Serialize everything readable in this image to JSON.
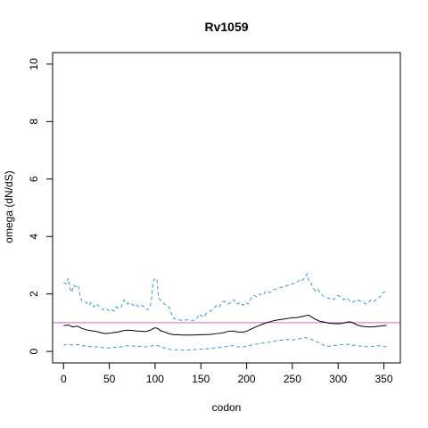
{
  "chart_data": {
    "type": "line",
    "title": "Rv1059",
    "xlabel": "codon",
    "ylabel": "omega (dN/dS)",
    "xlim": [
      -12,
      368
    ],
    "ylim": [
      -0.4,
      10.4
    ],
    "x_ticks": [
      0,
      50,
      100,
      150,
      200,
      250,
      300,
      350
    ],
    "y_ticks": [
      0,
      2,
      4,
      6,
      8,
      10
    ],
    "reference_line": {
      "y": 1,
      "color": "#cc66cc"
    },
    "colors": {
      "estimate": "#000000",
      "interval": "#3399dd"
    },
    "series": [
      {
        "role": "estimate",
        "line_style": "solid",
        "points": [
          [
            0,
            0.9
          ],
          [
            5,
            0.92
          ],
          [
            10,
            0.85
          ],
          [
            15,
            0.88
          ],
          [
            20,
            0.8
          ],
          [
            25,
            0.75
          ],
          [
            30,
            0.72
          ],
          [
            35,
            0.7
          ],
          [
            40,
            0.66
          ],
          [
            45,
            0.62
          ],
          [
            50,
            0.63
          ],
          [
            55,
            0.66
          ],
          [
            60,
            0.68
          ],
          [
            65,
            0.72
          ],
          [
            70,
            0.74
          ],
          [
            75,
            0.73
          ],
          [
            80,
            0.71
          ],
          [
            85,
            0.7
          ],
          [
            90,
            0.69
          ],
          [
            95,
            0.74
          ],
          [
            98,
            0.8
          ],
          [
            100,
            0.82
          ],
          [
            103,
            0.8
          ],
          [
            106,
            0.72
          ],
          [
            110,
            0.68
          ],
          [
            115,
            0.62
          ],
          [
            120,
            0.58
          ],
          [
            125,
            0.58
          ],
          [
            130,
            0.57
          ],
          [
            140,
            0.57
          ],
          [
            150,
            0.58
          ],
          [
            160,
            0.59
          ],
          [
            170,
            0.63
          ],
          [
            175,
            0.65
          ],
          [
            180,
            0.7
          ],
          [
            185,
            0.71
          ],
          [
            190,
            0.68
          ],
          [
            195,
            0.67
          ],
          [
            200,
            0.7
          ],
          [
            205,
            0.78
          ],
          [
            210,
            0.85
          ],
          [
            215,
            0.92
          ],
          [
            220,
            0.98
          ],
          [
            225,
            1.03
          ],
          [
            230,
            1.07
          ],
          [
            235,
            1.1
          ],
          [
            240,
            1.12
          ],
          [
            245,
            1.15
          ],
          [
            250,
            1.17
          ],
          [
            255,
            1.18
          ],
          [
            260,
            1.21
          ],
          [
            265,
            1.25
          ],
          [
            268,
            1.26
          ],
          [
            270,
            1.22
          ],
          [
            275,
            1.12
          ],
          [
            280,
            1.05
          ],
          [
            285,
            1.02
          ],
          [
            290,
            0.98
          ],
          [
            295,
            0.97
          ],
          [
            300,
            0.96
          ],
          [
            305,
            0.98
          ],
          [
            310,
            1.02
          ],
          [
            313,
            1.03
          ],
          [
            316,
            1.0
          ],
          [
            320,
            0.93
          ],
          [
            325,
            0.88
          ],
          [
            330,
            0.86
          ],
          [
            335,
            0.85
          ],
          [
            340,
            0.86
          ],
          [
            345,
            0.88
          ],
          [
            350,
            0.9
          ],
          [
            353,
            0.9
          ]
        ]
      },
      {
        "role": "upper",
        "line_style": "dashed",
        "points": [
          [
            0,
            2.4
          ],
          [
            3,
            2.35
          ],
          [
            5,
            2.55
          ],
          [
            7,
            2.2
          ],
          [
            9,
            2.05
          ],
          [
            11,
            2.3
          ],
          [
            13,
            2.25
          ],
          [
            16,
            2.3
          ],
          [
            18,
            1.9
          ],
          [
            20,
            1.75
          ],
          [
            25,
            1.7
          ],
          [
            28,
            1.6
          ],
          [
            30,
            1.7
          ],
          [
            33,
            1.55
          ],
          [
            36,
            1.65
          ],
          [
            40,
            1.55
          ],
          [
            43,
            1.45
          ],
          [
            46,
            1.5
          ],
          [
            50,
            1.4
          ],
          [
            53,
            1.45
          ],
          [
            55,
            1.4
          ],
          [
            58,
            1.55
          ],
          [
            60,
            1.5
          ],
          [
            63,
            1.55
          ],
          [
            66,
            1.8
          ],
          [
            68,
            1.75
          ],
          [
            70,
            1.65
          ],
          [
            73,
            1.7
          ],
          [
            76,
            1.6
          ],
          [
            79,
            1.65
          ],
          [
            82,
            1.55
          ],
          [
            85,
            1.6
          ],
          [
            88,
            1.55
          ],
          [
            91,
            1.45
          ],
          [
            94,
            1.5
          ],
          [
            96,
            1.8
          ],
          [
            98,
            2.45
          ],
          [
            100,
            2.55
          ],
          [
            102,
            2.5
          ],
          [
            104,
            1.85
          ],
          [
            107,
            1.75
          ],
          [
            110,
            1.65
          ],
          [
            113,
            1.6
          ],
          [
            116,
            1.5
          ],
          [
            118,
            1.3
          ],
          [
            120,
            1.15
          ],
          [
            125,
            1.1
          ],
          [
            130,
            1.08
          ],
          [
            135,
            1.1
          ],
          [
            140,
            1.08
          ],
          [
            145,
            1.1
          ],
          [
            148,
            1.3
          ],
          [
            150,
            1.25
          ],
          [
            153,
            1.2
          ],
          [
            157,
            1.35
          ],
          [
            160,
            1.4
          ],
          [
            163,
            1.45
          ],
          [
            167,
            1.6
          ],
          [
            170,
            1.55
          ],
          [
            173,
            1.7
          ],
          [
            176,
            1.75
          ],
          [
            180,
            1.65
          ],
          [
            183,
            1.7
          ],
          [
            186,
            1.8
          ],
          [
            190,
            1.65
          ],
          [
            193,
            1.7
          ],
          [
            196,
            1.6
          ],
          [
            199,
            1.7
          ],
          [
            202,
            1.65
          ],
          [
            205,
            1.85
          ],
          [
            208,
            1.95
          ],
          [
            211,
            1.9
          ],
          [
            215,
            2.0
          ],
          [
            218,
            1.95
          ],
          [
            221,
            2.1
          ],
          [
            225,
            2.05
          ],
          [
            230,
            2.15
          ],
          [
            235,
            2.2
          ],
          [
            240,
            2.25
          ],
          [
            245,
            2.3
          ],
          [
            250,
            2.35
          ],
          [
            255,
            2.4
          ],
          [
            258,
            2.5
          ],
          [
            260,
            2.45
          ],
          [
            263,
            2.55
          ],
          [
            266,
            2.7
          ],
          [
            268,
            2.45
          ],
          [
            270,
            2.4
          ],
          [
            272,
            2.25
          ],
          [
            275,
            2.1
          ],
          [
            278,
            2.15
          ],
          [
            281,
            2.0
          ],
          [
            285,
            1.9
          ],
          [
            290,
            1.85
          ],
          [
            295,
            1.8
          ],
          [
            300,
            1.95
          ],
          [
            303,
            1.9
          ],
          [
            306,
            1.8
          ],
          [
            310,
            1.85
          ],
          [
            313,
            1.75
          ],
          [
            316,
            1.7
          ],
          [
            320,
            1.8
          ],
          [
            325,
            1.75
          ],
          [
            330,
            1.65
          ],
          [
            333,
            1.7
          ],
          [
            336,
            1.8
          ],
          [
            340,
            1.75
          ],
          [
            343,
            1.85
          ],
          [
            346,
            1.9
          ],
          [
            349,
            2.05
          ],
          [
            353,
            2.08
          ]
        ]
      },
      {
        "role": "lower",
        "line_style": "dashed",
        "points": [
          [
            0,
            0.22
          ],
          [
            5,
            0.25
          ],
          [
            10,
            0.22
          ],
          [
            15,
            0.24
          ],
          [
            20,
            0.2
          ],
          [
            25,
            0.18
          ],
          [
            30,
            0.17
          ],
          [
            35,
            0.16
          ],
          [
            40,
            0.15
          ],
          [
            45,
            0.12
          ],
          [
            50,
            0.12
          ],
          [
            55,
            0.14
          ],
          [
            60,
            0.15
          ],
          [
            65,
            0.17
          ],
          [
            70,
            0.2
          ],
          [
            75,
            0.19
          ],
          [
            80,
            0.18
          ],
          [
            85,
            0.17
          ],
          [
            90,
            0.16
          ],
          [
            95,
            0.18
          ],
          [
            100,
            0.22
          ],
          [
            103,
            0.2
          ],
          [
            106,
            0.16
          ],
          [
            110,
            0.12
          ],
          [
            115,
            0.08
          ],
          [
            120,
            0.05
          ],
          [
            125,
            0.06
          ],
          [
            130,
            0.05
          ],
          [
            140,
            0.06
          ],
          [
            150,
            0.08
          ],
          [
            160,
            0.1
          ],
          [
            170,
            0.14
          ],
          [
            180,
            0.18
          ],
          [
            185,
            0.2
          ],
          [
            190,
            0.16
          ],
          [
            195,
            0.15
          ],
          [
            200,
            0.18
          ],
          [
            205,
            0.22
          ],
          [
            210,
            0.25
          ],
          [
            215,
            0.28
          ],
          [
            220,
            0.3
          ],
          [
            225,
            0.32
          ],
          [
            230,
            0.35
          ],
          [
            235,
            0.38
          ],
          [
            240,
            0.4
          ],
          [
            245,
            0.42
          ],
          [
            250,
            0.4
          ],
          [
            255,
            0.42
          ],
          [
            260,
            0.46
          ],
          [
            265,
            0.48
          ],
          [
            268,
            0.45
          ],
          [
            272,
            0.4
          ],
          [
            275,
            0.35
          ],
          [
            280,
            0.3
          ],
          [
            285,
            0.2
          ],
          [
            290,
            0.18
          ],
          [
            295,
            0.2
          ],
          [
            300,
            0.22
          ],
          [
            305,
            0.24
          ],
          [
            310,
            0.25
          ],
          [
            315,
            0.22
          ],
          [
            320,
            0.2
          ],
          [
            325,
            0.18
          ],
          [
            330,
            0.17
          ],
          [
            335,
            0.16
          ],
          [
            340,
            0.18
          ],
          [
            345,
            0.2
          ],
          [
            350,
            0.17
          ],
          [
            353,
            0.16
          ]
        ]
      }
    ]
  }
}
